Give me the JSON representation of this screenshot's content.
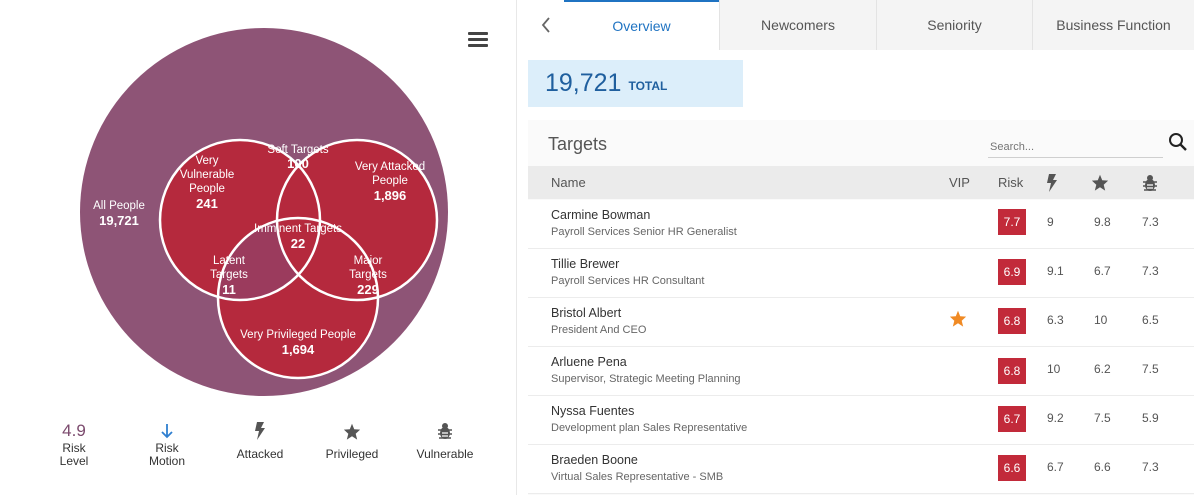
{
  "venn": {
    "all_people": {
      "label": "All People",
      "value": "19,721"
    },
    "very_vulnerable": {
      "label_lines": [
        "Very",
        "Vulnerable",
        "People"
      ],
      "value": "241"
    },
    "soft_targets": {
      "label": "Soft Targets",
      "value": "100"
    },
    "very_attacked": {
      "label_lines": [
        "Very Attacked",
        "People"
      ],
      "value": "1,896"
    },
    "imminent_targets": {
      "label": "Imminent Targets",
      "value": "22"
    },
    "latent_targets": {
      "label_lines": [
        "Latent",
        "Targets"
      ],
      "value": "11"
    },
    "major_targets": {
      "label_lines": [
        "Major",
        "Targets"
      ],
      "value": "229"
    },
    "very_privileged": {
      "label": "Very Privileged People",
      "value": "1,694"
    },
    "colors": {
      "outer": "#8e5476",
      "inner": "#b5293d",
      "overlap": "#9b3b5d",
      "stroke": "#ffffff"
    }
  },
  "legend": {
    "risk_level": {
      "value": "4.9",
      "label_lines": [
        "Risk",
        "Level"
      ]
    },
    "risk_motion": {
      "icon": "arrow-down-icon",
      "label_lines": [
        "Risk",
        "Motion"
      ]
    },
    "attacked": {
      "icon": "lightning-icon",
      "label": "Attacked"
    },
    "privileged": {
      "icon": "star-icon",
      "label": "Privileged"
    },
    "vulnerable": {
      "icon": "bug-icon",
      "label": "Vulnerable"
    }
  },
  "tabs": [
    {
      "label": "Overview",
      "active": true
    },
    {
      "label": "Newcomers",
      "active": false
    },
    {
      "label": "Seniority",
      "active": false
    },
    {
      "label": "Business Function",
      "active": false
    }
  ],
  "total": {
    "value": "19,721",
    "label": "TOTAL"
  },
  "targets": {
    "title": "Targets",
    "search_placeholder": "Search...",
    "columns": {
      "name": "Name",
      "vip": "VIP",
      "risk": "Risk",
      "attacked_icon": "lightning-icon",
      "privileged_icon": "star-icon",
      "vulnerable_icon": "bug-icon"
    },
    "rows": [
      {
        "name": "Carmine Bowman",
        "title": "Payroll Services Senior HR Generalist",
        "vip": false,
        "risk": "7.7",
        "attacked": "9",
        "privileged": "9.8",
        "vulnerable": "7.3"
      },
      {
        "name": "Tillie Brewer",
        "title": "Payroll Services HR Consultant",
        "vip": false,
        "risk": "6.9",
        "attacked": "9.1",
        "privileged": "6.7",
        "vulnerable": "7.3"
      },
      {
        "name": "Bristol Albert",
        "title": "President And CEO",
        "vip": true,
        "risk": "6.8",
        "attacked": "6.3",
        "privileged": "10",
        "vulnerable": "6.5"
      },
      {
        "name": "Arluene Pena",
        "title": "Supervisor, Strategic Meeting Planning",
        "vip": false,
        "risk": "6.8",
        "attacked": "10",
        "privileged": "6.2",
        "vulnerable": "7.5"
      },
      {
        "name": "Nyssa Fuentes",
        "title": "Development plan Sales Representative",
        "vip": false,
        "risk": "6.7",
        "attacked": "9.2",
        "privileged": "7.5",
        "vulnerable": "5.9"
      },
      {
        "name": "Braeden Boone",
        "title": "Virtual Sales Representative - SMB",
        "vip": false,
        "risk": "6.6",
        "attacked": "6.7",
        "privileged": "6.6",
        "vulnerable": "7.3"
      }
    ]
  },
  "colors": {
    "accent": "#1f73c2",
    "risk_badge": "#c22a3a",
    "vip_star": "#f08a24",
    "total_bg": "#dceefa"
  }
}
